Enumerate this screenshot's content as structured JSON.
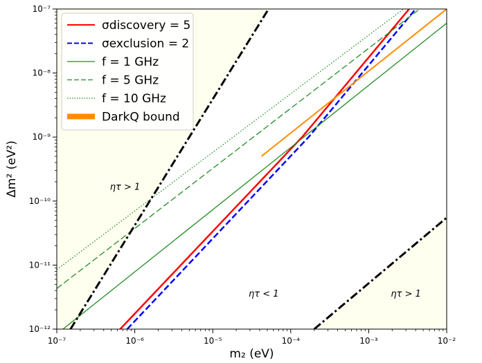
{
  "chart_data": {
    "type": "line",
    "xlabel": "m₂ (eV)",
    "ylabel": "Δm² (eV²)",
    "xscale": "log",
    "yscale": "log",
    "xlim": [
      1e-07,
      0.01
    ],
    "ylim": [
      1e-12,
      1e-07
    ],
    "grid": false,
    "legend_position": "top-left",
    "x_ticks": [
      {
        "value": 1e-07,
        "label": "10⁻⁷"
      },
      {
        "value": 1e-06,
        "label": "10⁻⁶"
      },
      {
        "value": 1e-05,
        "label": "10⁻⁵"
      },
      {
        "value": 0.0001,
        "label": "10⁻⁴"
      },
      {
        "value": 0.001,
        "label": "10⁻³"
      },
      {
        "value": 0.01,
        "label": "10⁻²"
      }
    ],
    "y_ticks": [
      {
        "value": 1e-12,
        "label": "10⁻¹²"
      },
      {
        "value": 1e-11,
        "label": "10⁻¹¹"
      },
      {
        "value": 1e-10,
        "label": "10⁻¹⁰"
      },
      {
        "value": 1e-09,
        "label": "10⁻⁹"
      },
      {
        "value": 1e-08,
        "label": "10⁻⁸"
      },
      {
        "value": 1e-07,
        "label": "10⁻⁷"
      }
    ],
    "series": [
      {
        "key": "discovery",
        "name": "σdiscovery = 5",
        "color": "#ff0000",
        "dash": "solid",
        "width": 2.5,
        "x": [
          6.5e-07,
          0.00014,
          0.0033
        ],
        "y": [
          1e-12,
          1e-09,
          1e-07
        ]
      },
      {
        "key": "exclusion",
        "name": "σexclusion = 2",
        "color": "#0000ff",
        "dash": "dashed",
        "width": 2.5,
        "x": [
          8e-07,
          0.00017,
          0.004
        ],
        "y": [
          1e-12,
          1e-09,
          1e-07
        ]
      },
      {
        "key": "f1",
        "name": "f = 1 GHz",
        "color": "#228b22",
        "dash": "solid",
        "width": 1.3,
        "x": [
          1.2e-07,
          0.01
        ],
        "y": [
          1e-12,
          6e-08
        ]
      },
      {
        "key": "f5",
        "name": "f = 5 GHz",
        "color": "#228b22",
        "dash": "dashed",
        "width": 1.3,
        "x": [
          1e-07,
          0.0045
        ],
        "y": [
          4.3e-12,
          1e-07
        ]
      },
      {
        "key": "f10",
        "name": "f = 10 GHz",
        "color": "#228b22",
        "dash": "dotted",
        "width": 1.3,
        "x": [
          1e-07,
          0.0028
        ],
        "y": [
          8.5e-12,
          1e-07
        ]
      },
      {
        "key": "darkq",
        "name": "DarkQ bound",
        "color": "#ff8c00",
        "dash": "solid",
        "width": 2,
        "x": [
          4.2e-05,
          0.01
        ],
        "y": [
          5e-10,
          1e-07
        ]
      }
    ],
    "boundaries": [
      {
        "key": "upper",
        "color": "#000000",
        "x": [
          1.5e-07,
          5.2e-05
        ],
        "y": [
          1e-12,
          1e-07
        ]
      },
      {
        "key": "lower",
        "color": "#000000",
        "x": [
          0.0002,
          0.01
        ],
        "y": [
          1e-12,
          5.5e-11
        ]
      }
    ],
    "regions": [
      {
        "key": "upper-left",
        "fill": "#fffff0",
        "polygon": [
          [
            1e-07,
            1e-12
          ],
          [
            1.5e-07,
            1e-12
          ],
          [
            5.2e-05,
            1e-07
          ],
          [
            1e-07,
            1e-07
          ]
        ]
      },
      {
        "key": "lower-right",
        "fill": "#fffff0",
        "polygon": [
          [
            0.0002,
            1e-12
          ],
          [
            0.01,
            1e-12
          ],
          [
            0.01,
            5.5e-11
          ]
        ]
      }
    ],
    "annotations": [
      {
        "key": "upper",
        "text": "ητ > 1",
        "x": 7.5e-07,
        "y": 1.5e-10
      },
      {
        "key": "middle",
        "text": "ητ < 1",
        "x": 4.5e-05,
        "y": 3.2e-12
      },
      {
        "key": "right",
        "text": "ητ > 1",
        "x": 0.003,
        "y": 3.2e-12
      }
    ]
  }
}
